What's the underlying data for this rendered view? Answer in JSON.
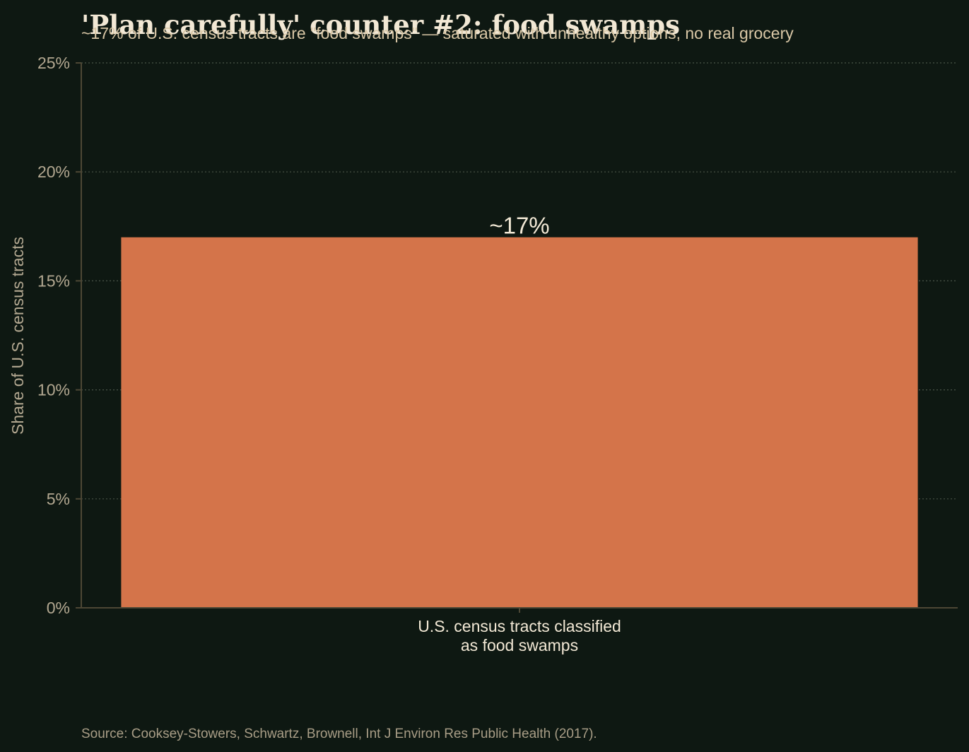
{
  "chart_data": {
    "type": "bar",
    "title": "'Plan carefully' counter #2: food swamps",
    "subtitle": "~17% of U.S. census tracts are \"food swamps\" — saturated with unhealthy options, no real grocery",
    "ylabel": "Share of U.S. census tracts",
    "xlabel": "",
    "categories": [
      [
        "U.S. census tracts classified",
        "as food swamps"
      ]
    ],
    "values": [
      17
    ],
    "data_labels": [
      "~17%"
    ],
    "ylim": [
      0,
      25
    ],
    "yticks": [
      0,
      5,
      10,
      15,
      20,
      25
    ],
    "ytick_labels": [
      "0%",
      "5%",
      "10%",
      "15%",
      "20%",
      "25%"
    ],
    "grid": true,
    "bar_color": "#d4744a",
    "source": "Source: Cooksey-Stowers, Schwartz, Brownell, Int J Environ Res Public Health (2017)."
  }
}
